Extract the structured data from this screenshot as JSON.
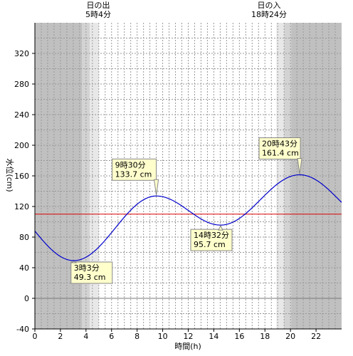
{
  "chart_data": {
    "type": "line",
    "xlabel": "時間(h)",
    "ylabel": "水位(cm)",
    "xlim": [
      0,
      24
    ],
    "ylim": [
      -40,
      360
    ],
    "x_ticks": [
      0,
      2,
      4,
      6,
      8,
      10,
      12,
      14,
      16,
      18,
      20,
      22
    ],
    "x_tick_labels": [
      "0",
      "2",
      "4",
      "6",
      "8",
      "10",
      "12",
      "14",
      "16",
      "18",
      "20",
      "22"
    ],
    "y_ticks": [
      -40,
      0,
      40,
      80,
      120,
      160,
      200,
      240,
      280,
      320
    ],
    "y_tick_labels": [
      "-40",
      "0",
      "40",
      "80",
      "120",
      "160",
      "200",
      "240",
      "280",
      "320"
    ],
    "grid": "vertical dotted every 0.5 h, horizontal dotted every 20 cm",
    "series": [
      {
        "color": "#0000cc",
        "extrema": [
          {
            "x": 3.05,
            "y": 49.3
          },
          {
            "x": 9.5,
            "y": 133.7
          },
          {
            "x": 14.533,
            "y": 95.7
          },
          {
            "x": 20.717,
            "y": 161.4
          }
        ],
        "start": {
          "x": 0,
          "y": 98
        },
        "end": {
          "x": 24,
          "y": 116
        }
      }
    ],
    "reference_line": {
      "y": 110,
      "color": "#dd0000"
    },
    "sunrise": {
      "title": "日の出",
      "time": "5時4分",
      "x": 5.067
    },
    "sunset": {
      "title": "日の入",
      "time": "18時24分",
      "x": 18.4
    },
    "annotations": [
      {
        "time": "3時3分",
        "value": "49.3 cm",
        "x": 3.05,
        "y": 49.3
      },
      {
        "time": "9時30分",
        "value": "133.7 cm",
        "x": 9.5,
        "y": 133.7
      },
      {
        "time": "14時32分",
        "value": "95.7 cm",
        "x": 14.533,
        "y": 95.7
      },
      {
        "time": "20時43分",
        "value": "161.4 cm",
        "x": 20.717,
        "y": 161.4
      }
    ],
    "colors": {
      "night": "#c0c0c0",
      "twilight_dark": "#d3d3d3",
      "twilight_light": "#e8e8e8",
      "annotation_fill": "#ffffcc",
      "annotation_border": "#888888"
    }
  }
}
